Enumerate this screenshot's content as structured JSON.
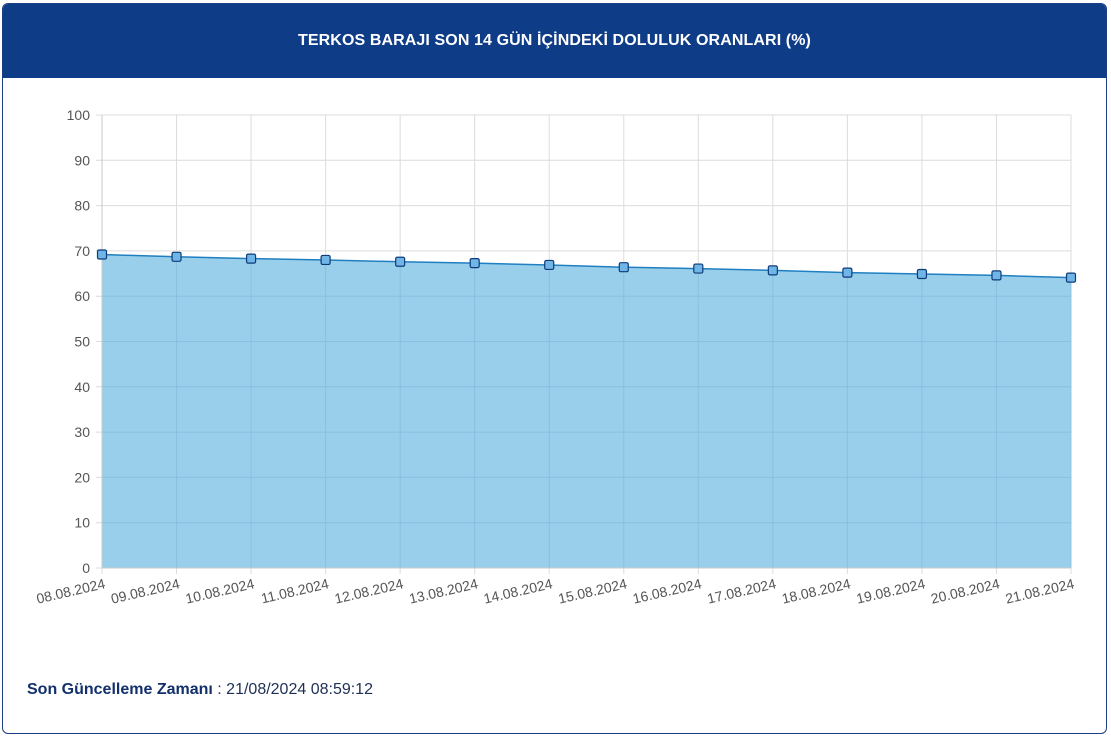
{
  "header": {
    "title": "TERKOS BARAJI SON 14 GÜN İÇİNDEKİ DOLULUK ORANLARI (%)"
  },
  "footer": {
    "label": "Son Güncelleme Zamanı",
    "separator": " : ",
    "value": "21/08/2024 08:59:12"
  },
  "colors": {
    "header_bg": "#0e3c87",
    "area_fill": "#9acfeb",
    "line": "#1f7fc0",
    "marker_fill": "#6fb6e6",
    "marker_stroke": "#0f3b7a",
    "grid": "#dcdcdc",
    "axis_text": "#555555"
  },
  "chart_data": {
    "type": "area",
    "title": "TERKOS BARAJI SON 14 GÜN İÇİNDEKİ DOLULUK ORANLARI (%)",
    "xlabel": "",
    "ylabel": "",
    "categories": [
      "08.08.2024",
      "09.08.2024",
      "10.08.2024",
      "11.08.2024",
      "12.08.2024",
      "13.08.2024",
      "14.08.2024",
      "15.08.2024",
      "16.08.2024",
      "17.08.2024",
      "18.08.2024",
      "19.08.2024",
      "20.08.2024",
      "21.08.2024"
    ],
    "values": [
      69.2,
      68.7,
      68.3,
      68.0,
      67.6,
      67.3,
      66.9,
      66.4,
      66.1,
      65.7,
      65.2,
      64.9,
      64.6,
      64.1
    ],
    "ylim": [
      0,
      100
    ],
    "yticks": [
      0,
      10,
      20,
      30,
      40,
      50,
      60,
      70,
      80,
      90,
      100
    ],
    "grid": true,
    "legend": "none",
    "marker": "square"
  }
}
